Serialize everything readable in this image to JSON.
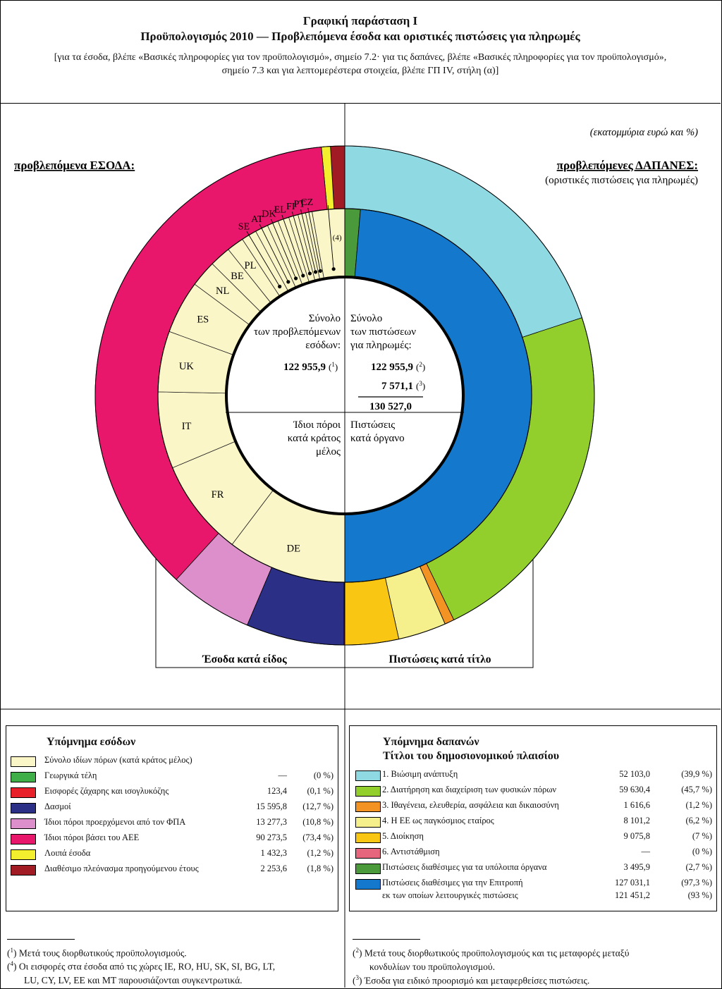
{
  "header": {
    "title": "Γραφική παράσταση I",
    "subtitle": "Προϋπολογισμός 2010 — Προβλεπόμενα έσοδα και οριστικές πιστώσεις για πληρωμές",
    "note_line1": "[για τα έσοδα, βλέπε «Βασικές πληροφορίες για τον προϋπολογισμό», σημείο 7.2· για τις δαπάνες, βλέπε «Βασικές πληροφορίες για τον προϋπολογισμό»,",
    "note_line2": "σημείο 7.3 και για λεπτομερέστερα στοιχεία, βλέπε ΓΠ IV, στήλη (α)]"
  },
  "chart_data": {
    "type": "pie",
    "unit_note": "(εκατομμύρια ευρώ και %)",
    "revenue_heading": "προβλεπόμενα ΕΣΟΔΑ:",
    "expenditure_heading": "προβλεπόμενες ΔΑΠΑΝΕΣ:",
    "expenditure_subheading": "(οριστικές πιστώσεις για πληρωμές)",
    "revenue_outer_label": "Έσοδα κατά είδος",
    "expenditure_outer_label": "Πιστώσεις κατά τίτλο",
    "center": {
      "rev_text": [
        "Σύνολο",
        "των προβλεπόμενων",
        "εσόδων:"
      ],
      "rev_total": "122 955,9",
      "rev_total_note": "1",
      "exp_text": [
        "Σύνολο",
        "των πιστώσεων",
        "για πληρωμές:"
      ],
      "exp_val1": "122 955,9",
      "exp_val1_note": "2",
      "exp_val2": "7 571,1",
      "exp_val2_note": "3",
      "exp_total": "130 527,0",
      "rev_bottom": [
        "Ίδιοι πόροι",
        "κατά κράτος",
        "μέλος"
      ],
      "exp_bottom": [
        "Πιστώσεις",
        "κατά όργανο"
      ]
    },
    "revenue_outer": [
      {
        "name": "Γεωργικά τέλη",
        "value": 0,
        "color": "#3fae49"
      },
      {
        "name": "Εισφορές ζάχαρης και ισογλυκόζης",
        "value": 123.4,
        "color": "#e8202a"
      },
      {
        "name": "Δασμοί",
        "value": 15595.8,
        "color": "#2b2f85"
      },
      {
        "name": "Ίδιοι πόροι προερχόμενοι από τον ΦΠΑ",
        "value": 13277.3,
        "color": "#dd8fcc"
      },
      {
        "name": "Ίδιοι πόροι βάσει του ΑΕΕ",
        "value": 90273.5,
        "color": "#e8176b"
      },
      {
        "name": "Λοιπά έσοδα",
        "value": 1432.3,
        "color": "#f3ee2e"
      },
      {
        "name": "Διαθέσιμο πλεόνασμα προηγούμενου έτους",
        "value": 2253.6,
        "color": "#a01b24"
      }
    ],
    "revenue_inner": [
      {
        "label": "DE",
        "value": 20.2
      },
      {
        "label": "FR",
        "value": 16.4
      },
      {
        "label": "IT",
        "value": 13.0
      },
      {
        "label": "UK",
        "value": 10.3
      },
      {
        "label": "ES",
        "value": 9.0
      },
      {
        "label": "NL",
        "value": 4.5
      },
      {
        "label": "BE",
        "value": 3.6
      },
      {
        "label": "PL",
        "value": 2.9
      },
      {
        "label": "SE",
        "value": 2.6
      },
      {
        "label": "AT",
        "value": 2.2
      },
      {
        "label": "DK",
        "value": 1.9
      },
      {
        "label": "EL",
        "value": 1.9
      },
      {
        "label": "FI",
        "value": 1.6
      },
      {
        "label": "PT",
        "value": 1.3
      },
      {
        "label": "CZ",
        "value": 1.1
      },
      {
        "label": "(4)",
        "value": 5.5
      }
    ],
    "expenditure_outer": [
      {
        "name": "1. Βιώσιμη ανάπτυξη",
        "value": 52103.0,
        "color": "#8fd9e3"
      },
      {
        "name": "2. Διατήρηση και διαχείριση των φυσικών πόρων",
        "value": 59630.4,
        "color": "#93cf2c"
      },
      {
        "name": "3. Ιθαγένεια, ελευθερία, ασφάλεια και δικαιοσύνη",
        "value": 1616.6,
        "color": "#f39324"
      },
      {
        "name": "4. Η ΕΕ ως παγκόσμιος εταίρος",
        "value": 8101.2,
        "color": "#f5f08c"
      },
      {
        "name": "5. Διοίκηση",
        "value": 9075.8,
        "color": "#f8c613"
      },
      {
        "name": "6. Αντιστάθμιση",
        "value": 0,
        "color": "#e6667e"
      }
    ],
    "expenditure_inner": [
      {
        "name": "Πιστώσεις διαθέσιμες για τα υπόλοιπα όργανα",
        "value": 3495.9,
        "color": "#4a9a3b"
      },
      {
        "name": "Πιστώσεις διαθέσιμες για την Επιτροπή",
        "value": 127031.1,
        "color": "#1478cc"
      }
    ]
  },
  "rev_legend": {
    "title": "Υπόμνημα εσόδων",
    "rows": [
      {
        "label": "Σύνολο ιδίων πόρων (κατά κράτος μέλος)",
        "value": "",
        "pct": "",
        "color": "#fbf6c8"
      },
      {
        "label": "Γεωργικά τέλη",
        "value": "—",
        "pct": "(0 %)",
        "color": "#3fae49"
      },
      {
        "label": "Εισφορές ζάχαρης και ισογλυκόζης",
        "value": "123,4",
        "pct": "(0,1 %)",
        "color": "#e8202a"
      },
      {
        "label": "Δασμοί",
        "value": "15 595,8",
        "pct": "(12,7 %)",
        "color": "#2b2f85"
      },
      {
        "label": "Ίδιοι πόροι προερχόμενοι από τον ΦΠΑ",
        "value": "13 277,3",
        "pct": "(10,8 %)",
        "color": "#dd8fcc"
      },
      {
        "label": "Ίδιοι πόροι βάσει του ΑΕΕ",
        "value": "90 273,5",
        "pct": "(73,4 %)",
        "color": "#e8176b"
      },
      {
        "label": "Λοιπά έσοδα",
        "value": "1 432,3",
        "pct": "(1,2 %)",
        "color": "#f3ee2e"
      },
      {
        "label": "Διαθέσιμο πλεόνασμα προηγούμενου έτους",
        "value": "2 253,6",
        "pct": "(1,8 %)",
        "color": "#a01b24"
      }
    ]
  },
  "exp_legend": {
    "title1": "Υπόμνημα δαπανών",
    "title2": "Τίτλοι του δημοσιονομικού πλαισίου",
    "rows": [
      {
        "label": "1. Βιώσιμη ανάπτυξη",
        "value": "52 103,0",
        "pct": "(39,9 %)",
        "color": "#8fd9e3"
      },
      {
        "label": "2. Διατήρηση και διαχείριση των φυσικών πόρων",
        "value": "59 630,4",
        "pct": "(45,7 %)",
        "color": "#93cf2c"
      },
      {
        "label": "3. Ιθαγένεια, ελευθερία, ασφάλεια και δικαιοσύνη",
        "value": "1 616,6",
        "pct": "(1,2 %)",
        "color": "#f39324"
      },
      {
        "label": "4. Η ΕΕ ως παγκόσμιος εταίρος",
        "value": "8 101,2",
        "pct": "(6,2 %)",
        "color": "#f5f08c"
      },
      {
        "label": "5. Διοίκηση",
        "value": "9 075,8",
        "pct": "(7 %)",
        "color": "#f8c613"
      },
      {
        "label": "6. Αντιστάθμιση",
        "value": "—",
        "pct": "(0 %)",
        "color": "#e6667e"
      },
      {
        "label": "Πιστώσεις διαθέσιμες για τα υπόλοιπα όργανα",
        "value": "3 495,9",
        "pct": "(2,7 %)",
        "color": "#4a9a3b"
      },
      {
        "label": "Πιστώσεις διαθέσιμες για την Επιτροπή",
        "value": "127 031,1",
        "pct": "(97,3 %)",
        "color": "#1478cc"
      }
    ],
    "subrow": {
      "label": "εκ των οποίων λειτουργικές πιστώσεις",
      "value": "121 451,2",
      "pct": "(93 %)"
    }
  },
  "footnotes": {
    "n1_mark": "1",
    "n1": "Μετά τους διορθωτικούς προϋπολογισμούς.",
    "n4_mark": "4",
    "n4_line1": "Οι εισφορές στα έσοδα από τις χώρες IE, RO, HU, SK, SI, BG, LT,",
    "n4_line2": "LU, CY, LV, EE και MT παρουσιάζονται συγκεντρωτικά.",
    "n2_mark": "2",
    "n2_line1": "Μετά τους διορθωτικούς προϋπολογισμούς και τις μεταφορές μεταξύ",
    "n2_line2": "κονδυλίων του προϋπολογισμού.",
    "n3_mark": "3",
    "n3": "Έσοδα για ειδικό προορισμό και μεταφερθείσες πιστώσεις."
  }
}
